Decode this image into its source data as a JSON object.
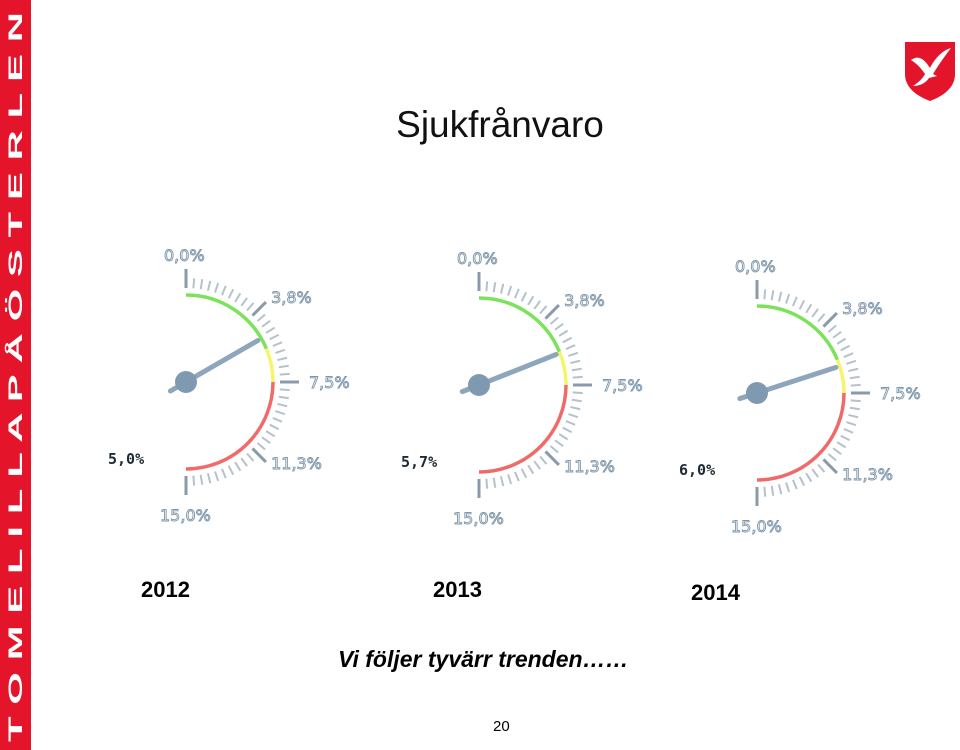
{
  "sidebar": {
    "text": "TOMELILLA PÅ ÖSTERLEN",
    "color": "#e4152b"
  },
  "crest": {
    "icon": "gull-crest-icon",
    "color": "#e4152b"
  },
  "slide": {
    "title": "Sjukfrånvaro",
    "subtitle": "Vi följer tyvärr trenden……",
    "page_number": "20"
  },
  "chart_data": [
    {
      "type": "gauge",
      "year": "2012",
      "value": 5.0,
      "value_label": "5,0%",
      "range": [
        0,
        15
      ],
      "tick_labels": [
        "0,0%",
        "3,8%",
        "7,5%",
        "11,3%",
        "15,0%"
      ],
      "bands": [
        {
          "from": 0,
          "to": 5.625,
          "color": "#7be25a"
        },
        {
          "from": 5.625,
          "to": 7.5,
          "color": "#f5f56a"
        },
        {
          "from": 7.5,
          "to": 15,
          "color": "#f06a6a"
        }
      ]
    },
    {
      "type": "gauge",
      "year": "2013",
      "value": 5.7,
      "value_label": "5,7%",
      "range": [
        0,
        15
      ],
      "tick_labels": [
        "0,0%",
        "3,8%",
        "7,5%",
        "11,3%",
        "15,0%"
      ],
      "bands": [
        {
          "from": 0,
          "to": 5.625,
          "color": "#7be25a"
        },
        {
          "from": 5.625,
          "to": 7.5,
          "color": "#f5f56a"
        },
        {
          "from": 7.5,
          "to": 15,
          "color": "#f06a6a"
        }
      ]
    },
    {
      "type": "gauge",
      "year": "2014",
      "value": 6.0,
      "value_label": "6,0%",
      "range": [
        0,
        15
      ],
      "tick_labels": [
        "0,0%",
        "3,8%",
        "7,5%",
        "11,3%",
        "15,0%"
      ],
      "bands": [
        {
          "from": 0,
          "to": 5.625,
          "color": "#7be25a"
        },
        {
          "from": 5.625,
          "to": 7.5,
          "color": "#f5f56a"
        },
        {
          "from": 7.5,
          "to": 15,
          "color": "#f06a6a"
        }
      ]
    }
  ]
}
